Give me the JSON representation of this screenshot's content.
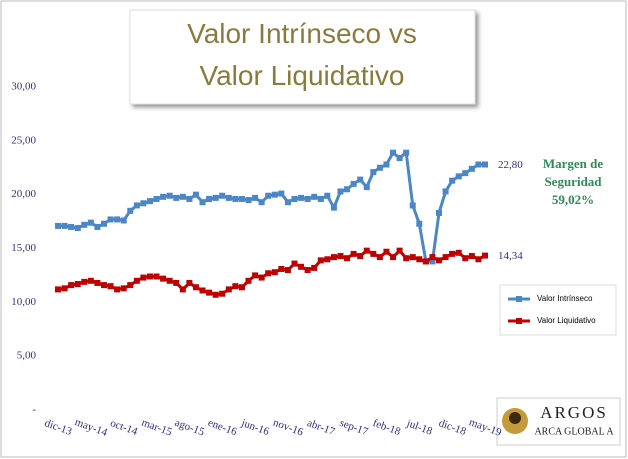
{
  "chart_data": {
    "type": "line",
    "title": "Valor Intrínseco vs Valor Liquidativo",
    "categories": [
      "dic-13",
      null,
      null,
      null,
      null,
      "may-14",
      null,
      null,
      null,
      null,
      "oct-14",
      null,
      null,
      null,
      null,
      "mar-15",
      null,
      null,
      null,
      null,
      "ago-15",
      null,
      null,
      null,
      null,
      "ene-16",
      null,
      null,
      null,
      null,
      "jun-16",
      null,
      null,
      null,
      null,
      "nov-16",
      null,
      null,
      null,
      null,
      "abr-17",
      null,
      null,
      null,
      null,
      "sep-17",
      null,
      null,
      null,
      null,
      "feb-18",
      null,
      null,
      null,
      null,
      "jul-18",
      null,
      null,
      null,
      null,
      "dic-18",
      null,
      null,
      null,
      null,
      "may-19"
    ],
    "series": [
      {
        "name": "Valor Intrínseco",
        "color": "#4a86c8",
        "values": [
          17.1,
          17.1,
          17.0,
          16.9,
          17.2,
          17.4,
          17.0,
          17.3,
          17.7,
          17.7,
          17.6,
          18.5,
          19.0,
          19.2,
          19.4,
          19.6,
          19.8,
          19.9,
          19.7,
          19.8,
          19.6,
          20.0,
          19.3,
          19.6,
          19.7,
          19.9,
          19.7,
          19.6,
          19.6,
          19.5,
          19.7,
          19.3,
          19.9,
          20.0,
          20.1,
          19.3,
          19.6,
          19.7,
          19.6,
          19.8,
          19.6,
          19.9,
          18.8,
          20.3,
          20.5,
          21.0,
          21.4,
          20.7,
          22.1,
          22.5,
          22.8,
          23.9,
          23.4,
          23.9,
          19.0,
          17.3,
          13.8,
          13.8,
          18.3,
          20.3,
          21.3,
          21.7,
          22.0,
          22.4,
          22.8,
          22.8
        ],
        "value_labels": [
          null,
          null,
          null,
          null,
          null,
          null,
          null,
          null,
          null,
          null,
          null,
          null,
          null,
          null,
          null,
          null,
          null,
          null,
          null,
          null,
          null,
          null,
          null,
          null,
          null,
          null,
          null,
          null,
          null,
          null,
          null,
          null,
          null,
          null,
          null,
          null,
          null,
          null,
          null,
          null,
          null,
          null,
          null,
          null,
          null,
          null,
          null,
          null,
          null,
          null,
          null,
          null,
          null,
          null,
          null,
          null,
          null,
          null,
          null,
          null,
          null,
          null,
          null,
          null,
          null,
          "22,80"
        ]
      },
      {
        "name": "Valor Liquidativo",
        "color": "#c00000",
        "values": [
          11.2,
          11.3,
          11.6,
          11.7,
          11.9,
          12.0,
          11.8,
          11.6,
          11.5,
          11.2,
          11.3,
          11.6,
          12.0,
          12.3,
          12.4,
          12.4,
          12.2,
          12.0,
          11.8,
          11.2,
          11.8,
          11.4,
          11.1,
          10.9,
          10.7,
          10.8,
          11.2,
          11.5,
          11.4,
          12.0,
          12.5,
          12.3,
          12.7,
          12.8,
          13.1,
          13.0,
          13.6,
          13.3,
          13.0,
          13.2,
          13.9,
          14.0,
          14.2,
          14.3,
          14.1,
          14.5,
          14.3,
          14.8,
          14.5,
          14.2,
          14.7,
          14.2,
          14.8,
          14.1,
          14.2,
          14.0,
          13.8,
          14.2,
          13.9,
          14.2,
          14.5,
          14.6,
          14.1,
          14.3,
          14.0,
          14.34
        ],
        "value_labels": [
          null,
          null,
          null,
          null,
          null,
          null,
          null,
          null,
          null,
          null,
          null,
          null,
          null,
          null,
          null,
          null,
          null,
          null,
          null,
          null,
          null,
          null,
          null,
          null,
          null,
          null,
          null,
          null,
          null,
          null,
          null,
          null,
          null,
          null,
          null,
          null,
          null,
          null,
          null,
          null,
          null,
          null,
          null,
          null,
          null,
          null,
          null,
          null,
          null,
          null,
          null,
          null,
          null,
          null,
          null,
          null,
          null,
          null,
          null,
          null,
          null,
          null,
          null,
          null,
          null,
          "14,34"
        ]
      }
    ],
    "ylim": [
      0,
      30
    ],
    "yticks": [
      {
        "value": 0,
        "label": "-"
      },
      {
        "value": 5,
        "label": "5,00"
      },
      {
        "value": 10,
        "label": "10,00"
      },
      {
        "value": 15,
        "label": "15,00"
      },
      {
        "value": 20,
        "label": "20,00"
      },
      {
        "value": 25,
        "label": "25,00"
      },
      {
        "value": 30,
        "label": "30,00"
      }
    ],
    "grid": false,
    "legend": "right",
    "annotation": [
      "Margen de",
      "Seguridad",
      "59,02%"
    ],
    "logo": {
      "title": "ARGOS",
      "subtitle": "ARCA GLOBAL A"
    }
  }
}
